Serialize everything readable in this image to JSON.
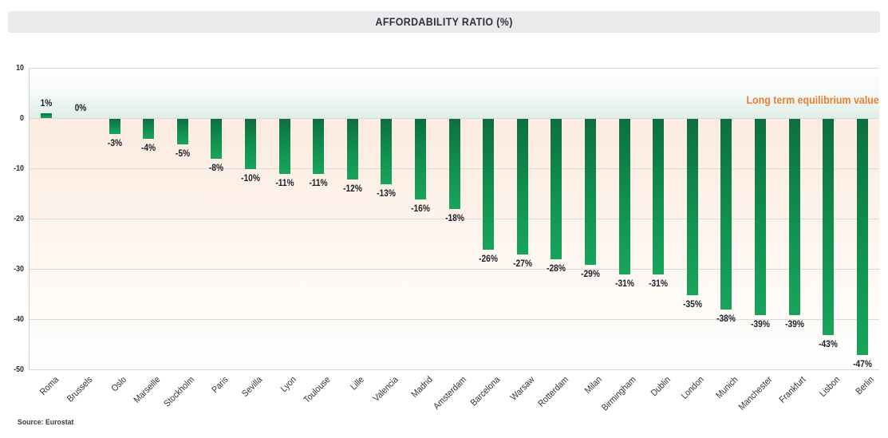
{
  "header": {
    "title": "AFFORDABILITY RATIO (%)"
  },
  "chart_data": {
    "type": "bar",
    "title": "AFFORDABILITY RATIO (%)",
    "categories": [
      "Roma",
      "Brussels",
      "Oslo",
      "Marseille",
      "Stockholm",
      "Paris",
      "Sevilla",
      "Lyon",
      "Toulouse",
      "Lille",
      "Valencia",
      "Madrid",
      "Amsterdam",
      "Barcelona",
      "Warsaw",
      "Rotterdam",
      "Milan",
      "Birmingham",
      "Dublin",
      "London",
      "Munich",
      "Manchester",
      "Frankfurt",
      "Lisbon",
      "Berlin"
    ],
    "values": [
      1,
      0,
      -3,
      -4,
      -5,
      -8,
      -10,
      -11,
      -11,
      -12,
      -13,
      -16,
      -18,
      -26,
      -27,
      -28,
      -29,
      -31,
      -31,
      -35,
      -38,
      -39,
      -39,
      -43,
      -47
    ],
    "value_suffix": "%",
    "ylim": [
      -50,
      10
    ],
    "yticks": [
      10,
      0,
      -10,
      -20,
      -30,
      -40,
      -50
    ],
    "grid": true,
    "legend_position": "none",
    "annotation": {
      "text": "Long term equilibrium value",
      "color": "#ed7d31"
    },
    "bar_color_top": "#0d6f3e",
    "bar_color_bottom": "#18a45b",
    "positive_bg_tint": "#dfeee7",
    "negative_bg_tint": "#fcebdf",
    "source": "Source: Eurostat"
  }
}
